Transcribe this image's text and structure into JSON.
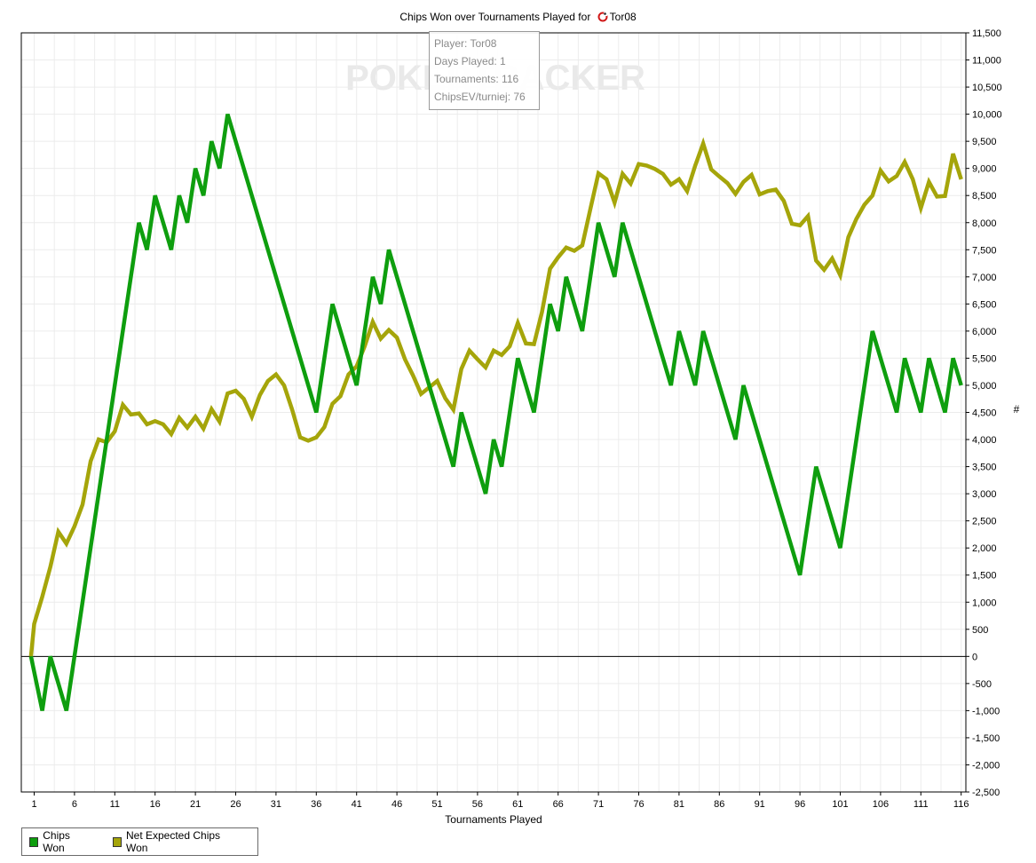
{
  "title": {
    "prefix": "Chips Won over Tournaments Played for",
    "player": "Tor08"
  },
  "watermark": "POKERTRACKER",
  "stats_box": {
    "player": "Player: Tor08",
    "days": "Days Played: 1",
    "tournaments": "Tournaments: 116",
    "chipsev": "ChipsEV/turniej: 76"
  },
  "legend": {
    "chips_won": "Chips Won",
    "net_expected": "Net Expected Chips Won"
  },
  "colors": {
    "chips_won": "#0e9e0e",
    "net_expected": "#a5a50a",
    "grid": "#ececec",
    "zero_line": "#000000"
  },
  "chart_data": {
    "type": "line",
    "title": "Chips Won over Tournaments Played for Tor08",
    "xlabel": "Tournaments Played",
    "ylabel": "#",
    "xlim": [
      1,
      116
    ],
    "ylim": [
      -2500,
      11500
    ],
    "y_ticks": [
      -2500,
      -2000,
      -1500,
      -1000,
      -500,
      0,
      500,
      1000,
      1500,
      2000,
      2500,
      3000,
      3500,
      4000,
      4500,
      5000,
      5500,
      6000,
      6500,
      7000,
      7500,
      8000,
      8500,
      9000,
      9500,
      10000,
      10500,
      11000,
      11500
    ],
    "y_tick_labels": [
      "-2,500",
      "-2,000",
      "-1,500",
      "-1,000",
      "-500",
      "0",
      "500",
      "1,000",
      "1,500",
      "2,000",
      "2,500",
      "3,000",
      "3,500",
      "4,000",
      "4,500",
      "5,000",
      "5,500",
      "6,000",
      "6,500",
      "7,000",
      "7,500",
      "8,000",
      "8,500",
      "9,000",
      "9,500",
      "10,000",
      "10,500",
      "11,000",
      "11,500"
    ],
    "x_ticks": [
      1,
      6,
      11,
      16,
      21,
      26,
      31,
      36,
      41,
      46,
      51,
      56,
      61,
      66,
      71,
      76,
      81,
      86,
      91,
      96,
      101,
      106,
      111,
      116
    ],
    "x_tick_labels": [
      "1",
      "6",
      "11",
      "16",
      "21",
      "26",
      "31",
      "36",
      "41",
      "46",
      "51",
      "56",
      "61",
      "66",
      "71",
      "76",
      "81",
      "86",
      "91",
      "96",
      "101",
      "106",
      "111",
      "116"
    ],
    "grid": true,
    "legend_position": "bottom-left",
    "series": [
      {
        "name": "Chips Won",
        "color": "#0e9e0e",
        "points": [
          [
            0,
            0
          ],
          [
            2,
            -1000
          ],
          [
            3,
            0
          ],
          [
            5,
            -1000
          ],
          [
            14,
            8000
          ],
          [
            15,
            7500
          ],
          [
            16,
            8500
          ],
          [
            18,
            7500
          ],
          [
            19,
            8500
          ],
          [
            20,
            8000
          ],
          [
            21,
            9000
          ],
          [
            22,
            8500
          ],
          [
            23,
            9500
          ],
          [
            24,
            9000
          ],
          [
            25,
            10000
          ],
          [
            36,
            4500
          ],
          [
            38,
            6500
          ],
          [
            41,
            5000
          ],
          [
            43,
            7000
          ],
          [
            44,
            6500
          ],
          [
            45,
            7500
          ],
          [
            53,
            3500
          ],
          [
            54,
            4500
          ],
          [
            57,
            3000
          ],
          [
            58,
            4000
          ],
          [
            59,
            3500
          ],
          [
            61,
            5500
          ],
          [
            63,
            4500
          ],
          [
            65,
            6500
          ],
          [
            66,
            6000
          ],
          [
            67,
            7000
          ],
          [
            69,
            6000
          ],
          [
            71,
            8000
          ],
          [
            73,
            7000
          ],
          [
            74,
            8000
          ],
          [
            80,
            5000
          ],
          [
            81,
            6000
          ],
          [
            83,
            5000
          ],
          [
            84,
            6000
          ],
          [
            88,
            4000
          ],
          [
            89,
            5000
          ],
          [
            96,
            1500
          ],
          [
            98,
            3500
          ],
          [
            101,
            2000
          ],
          [
            105,
            6000
          ],
          [
            108,
            4500
          ],
          [
            109,
            5500
          ],
          [
            111,
            4500
          ],
          [
            112,
            5500
          ],
          [
            114,
            4500
          ],
          [
            115,
            5500
          ],
          [
            116,
            5000
          ]
        ]
      },
      {
        "name": "Net Expected Chips Won",
        "color": "#a5a50a",
        "points": [
          [
            0,
            0
          ],
          [
            1,
            600
          ],
          [
            2,
            1100
          ],
          [
            3,
            1650
          ],
          [
            4,
            2300
          ],
          [
            5,
            2080
          ],
          [
            6,
            2400
          ],
          [
            7,
            2800
          ],
          [
            8,
            3600
          ],
          [
            9,
            4000
          ],
          [
            10,
            3950
          ],
          [
            11,
            4150
          ],
          [
            12,
            4640
          ],
          [
            13,
            4460
          ],
          [
            14,
            4480
          ],
          [
            15,
            4280
          ],
          [
            16,
            4340
          ],
          [
            17,
            4280
          ],
          [
            18,
            4100
          ],
          [
            19,
            4400
          ],
          [
            20,
            4220
          ],
          [
            21,
            4420
          ],
          [
            22,
            4200
          ],
          [
            23,
            4560
          ],
          [
            24,
            4330
          ],
          [
            25,
            4850
          ],
          [
            26,
            4900
          ],
          [
            27,
            4750
          ],
          [
            28,
            4420
          ],
          [
            29,
            4820
          ],
          [
            30,
            5080
          ],
          [
            31,
            5200
          ],
          [
            32,
            5000
          ],
          [
            33,
            4550
          ],
          [
            34,
            4040
          ],
          [
            35,
            3980
          ],
          [
            36,
            4040
          ],
          [
            37,
            4230
          ],
          [
            38,
            4660
          ],
          [
            39,
            4800
          ],
          [
            40,
            5200
          ],
          [
            41,
            5350
          ],
          [
            42,
            5720
          ],
          [
            43,
            6170
          ],
          [
            44,
            5860
          ],
          [
            45,
            6020
          ],
          [
            46,
            5880
          ],
          [
            47,
            5480
          ],
          [
            48,
            5180
          ],
          [
            49,
            4840
          ],
          [
            50,
            4960
          ],
          [
            51,
            5080
          ],
          [
            52,
            4760
          ],
          [
            53,
            4550
          ],
          [
            54,
            5300
          ],
          [
            55,
            5640
          ],
          [
            56,
            5480
          ],
          [
            57,
            5330
          ],
          [
            58,
            5640
          ],
          [
            59,
            5560
          ],
          [
            60,
            5720
          ],
          [
            61,
            6150
          ],
          [
            62,
            5770
          ],
          [
            63,
            5760
          ],
          [
            64,
            6350
          ],
          [
            65,
            7150
          ],
          [
            66,
            7360
          ],
          [
            67,
            7540
          ],
          [
            68,
            7480
          ],
          [
            69,
            7580
          ],
          [
            70,
            8250
          ],
          [
            71,
            8910
          ],
          [
            72,
            8800
          ],
          [
            73,
            8370
          ],
          [
            74,
            8900
          ],
          [
            75,
            8720
          ],
          [
            76,
            9080
          ],
          [
            77,
            9050
          ],
          [
            78,
            8990
          ],
          [
            79,
            8900
          ],
          [
            80,
            8700
          ],
          [
            81,
            8800
          ],
          [
            82,
            8580
          ],
          [
            83,
            9050
          ],
          [
            84,
            9460
          ],
          [
            85,
            8980
          ],
          [
            86,
            8850
          ],
          [
            87,
            8730
          ],
          [
            88,
            8530
          ],
          [
            89,
            8750
          ],
          [
            90,
            8880
          ],
          [
            91,
            8520
          ],
          [
            92,
            8580
          ],
          [
            93,
            8610
          ],
          [
            94,
            8400
          ],
          [
            95,
            7980
          ],
          [
            96,
            7950
          ],
          [
            97,
            8120
          ],
          [
            98,
            7300
          ],
          [
            99,
            7130
          ],
          [
            100,
            7340
          ],
          [
            101,
            7030
          ],
          [
            102,
            7730
          ],
          [
            103,
            8070
          ],
          [
            104,
            8330
          ],
          [
            105,
            8500
          ],
          [
            106,
            8960
          ],
          [
            107,
            8760
          ],
          [
            108,
            8860
          ],
          [
            109,
            9120
          ],
          [
            110,
            8800
          ],
          [
            111,
            8270
          ],
          [
            112,
            8750
          ],
          [
            113,
            8480
          ],
          [
            114,
            8490
          ],
          [
            115,
            9270
          ],
          [
            116,
            8800
          ]
        ]
      }
    ]
  }
}
